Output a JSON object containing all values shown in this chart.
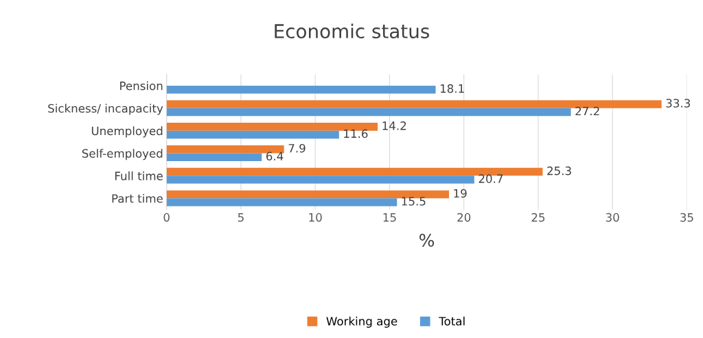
{
  "chart_data": {
    "type": "bar",
    "orientation": "horizontal",
    "title": "Economic status",
    "xlabel": "%",
    "categories": [
      "Pension",
      "Sickness/ incapacity",
      "Unemployed",
      "Self-employed",
      "Full time",
      "Part time"
    ],
    "series": [
      {
        "name": "Working age",
        "color": "#ed7d31",
        "values": [
          null,
          33.3,
          14.2,
          7.9,
          25.3,
          19
        ]
      },
      {
        "name": "Total",
        "color": "#5b9bd5",
        "values": [
          18.1,
          27.2,
          11.6,
          6.4,
          20.7,
          15.5
        ]
      }
    ],
    "xlim": [
      0,
      35
    ],
    "xticks": [
      0,
      5,
      10,
      15,
      20,
      25,
      30,
      35
    ],
    "grid": "x",
    "legend": "bottom",
    "data_labels": true
  }
}
